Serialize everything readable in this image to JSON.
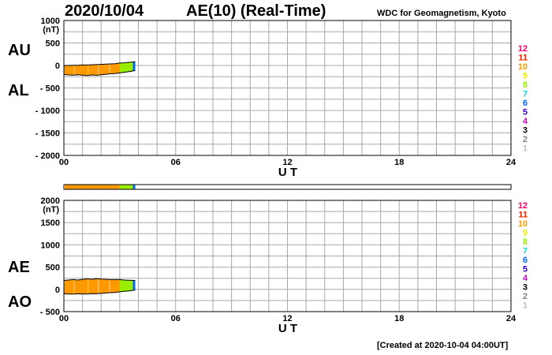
{
  "header": {
    "date": "2020/10/04",
    "title": "AE(10) (Real-Time)",
    "institution": "WDC for Geomagnetism, Kyoto",
    "created": "[Created at 2020-10-04 04:00UT]"
  },
  "colors": {
    "grid": "#a8a8a8",
    "frame": "#000000",
    "hour_colors": [
      "#c0c0c0",
      "#808080",
      "#000000",
      "#cc00cc",
      "#3300cc",
      "#0066ff",
      "#00dddd",
      "#99ee00",
      "#eeee00",
      "#ff9900",
      "#ee2200",
      "#ff0066"
    ]
  },
  "color_key": [
    "12",
    "11",
    "10",
    "9",
    "8",
    "7",
    "6",
    "5",
    "4",
    "3",
    "2",
    "1"
  ],
  "chart_data": [
    {
      "type": "area",
      "panel": "AU/AL",
      "ylabel_left_top": "AU",
      "ylabel_left_bottom": "AL",
      "unit_label": "(nT)",
      "xlabel": "U T",
      "xlim": [
        0,
        24
      ],
      "ylim": [
        -2000,
        1000
      ],
      "x_ticks": [
        "00",
        "06",
        "12",
        "18",
        "24"
      ],
      "y_ticks": [
        "1000",
        "500",
        "0",
        "- 500",
        "- 1000",
        "- 1500",
        "- 2000"
      ],
      "y_tick_values": [
        1000,
        500,
        0,
        -500,
        -1000,
        -1500,
        -2000
      ],
      "grid": true,
      "x": [
        0.0,
        0.25,
        0.5,
        0.75,
        1.0,
        1.25,
        1.5,
        1.75,
        2.0,
        2.25,
        2.5,
        2.75,
        3.0,
        3.25,
        3.5,
        3.75,
        3.83
      ],
      "series": [
        {
          "name": "AU",
          "values": [
            0,
            0,
            5,
            5,
            10,
            10,
            15,
            20,
            25,
            30,
            35,
            40,
            55,
            60,
            70,
            80,
            85
          ]
        },
        {
          "name": "AL",
          "values": [
            -200,
            -210,
            -215,
            -205,
            -215,
            -225,
            -210,
            -220,
            -205,
            -195,
            -185,
            -180,
            -165,
            -150,
            -135,
            -120,
            -115
          ]
        }
      ]
    },
    {
      "type": "area",
      "panel": "AE/AO",
      "ylabel_left_top": "AE",
      "ylabel_left_bottom": "AO",
      "unit_label": "(nT)",
      "xlabel": "U T",
      "xlim": [
        0,
        24
      ],
      "ylim": [
        -500,
        2000
      ],
      "x_ticks": [
        "00",
        "06",
        "12",
        "18",
        "24"
      ],
      "y_ticks": [
        "2000",
        "1500",
        "1000",
        "500",
        "0",
        "- 500"
      ],
      "y_tick_values": [
        2000,
        1500,
        1000,
        500,
        0,
        -500
      ],
      "grid": true,
      "x": [
        0.0,
        0.25,
        0.5,
        0.75,
        1.0,
        1.25,
        1.5,
        1.75,
        2.0,
        2.25,
        2.5,
        2.75,
        3.0,
        3.25,
        3.5,
        3.75,
        3.83
      ],
      "series": [
        {
          "name": "AE",
          "values": [
            200,
            210,
            220,
            210,
            225,
            235,
            225,
            240,
            230,
            225,
            220,
            220,
            220,
            210,
            205,
            200,
            200
          ]
        },
        {
          "name": "AO",
          "values": [
            -100,
            -105,
            -105,
            -100,
            -102,
            -107,
            -97,
            -100,
            -90,
            -82,
            -75,
            -70,
            -55,
            -45,
            -33,
            -20,
            -15
          ]
        }
      ]
    }
  ]
}
